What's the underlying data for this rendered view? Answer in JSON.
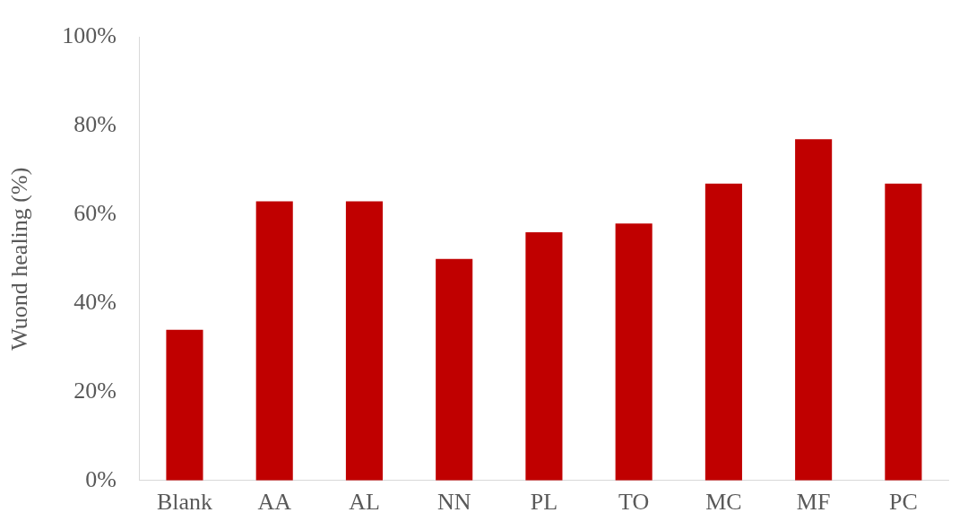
{
  "chart_data": {
    "type": "bar",
    "ylabel": "Wuond healing (%)",
    "categories": [
      "Blank",
      "AA",
      "AL",
      "NN",
      "PL",
      "TO",
      "MC",
      "MF",
      "PC"
    ],
    "values": [
      34,
      63,
      63,
      50,
      56,
      58,
      67,
      77,
      67
    ],
    "color": "#c00000",
    "ylim": [
      0,
      100
    ],
    "yticks": [
      {
        "value": 0,
        "label": "0%"
      },
      {
        "value": 20,
        "label": "20%"
      },
      {
        "value": 40,
        "label": "40%"
      },
      {
        "value": 60,
        "label": "60%"
      },
      {
        "value": 80,
        "label": "80%"
      },
      {
        "value": 100,
        "label": "100%"
      }
    ],
    "grid": false,
    "legend": false
  }
}
